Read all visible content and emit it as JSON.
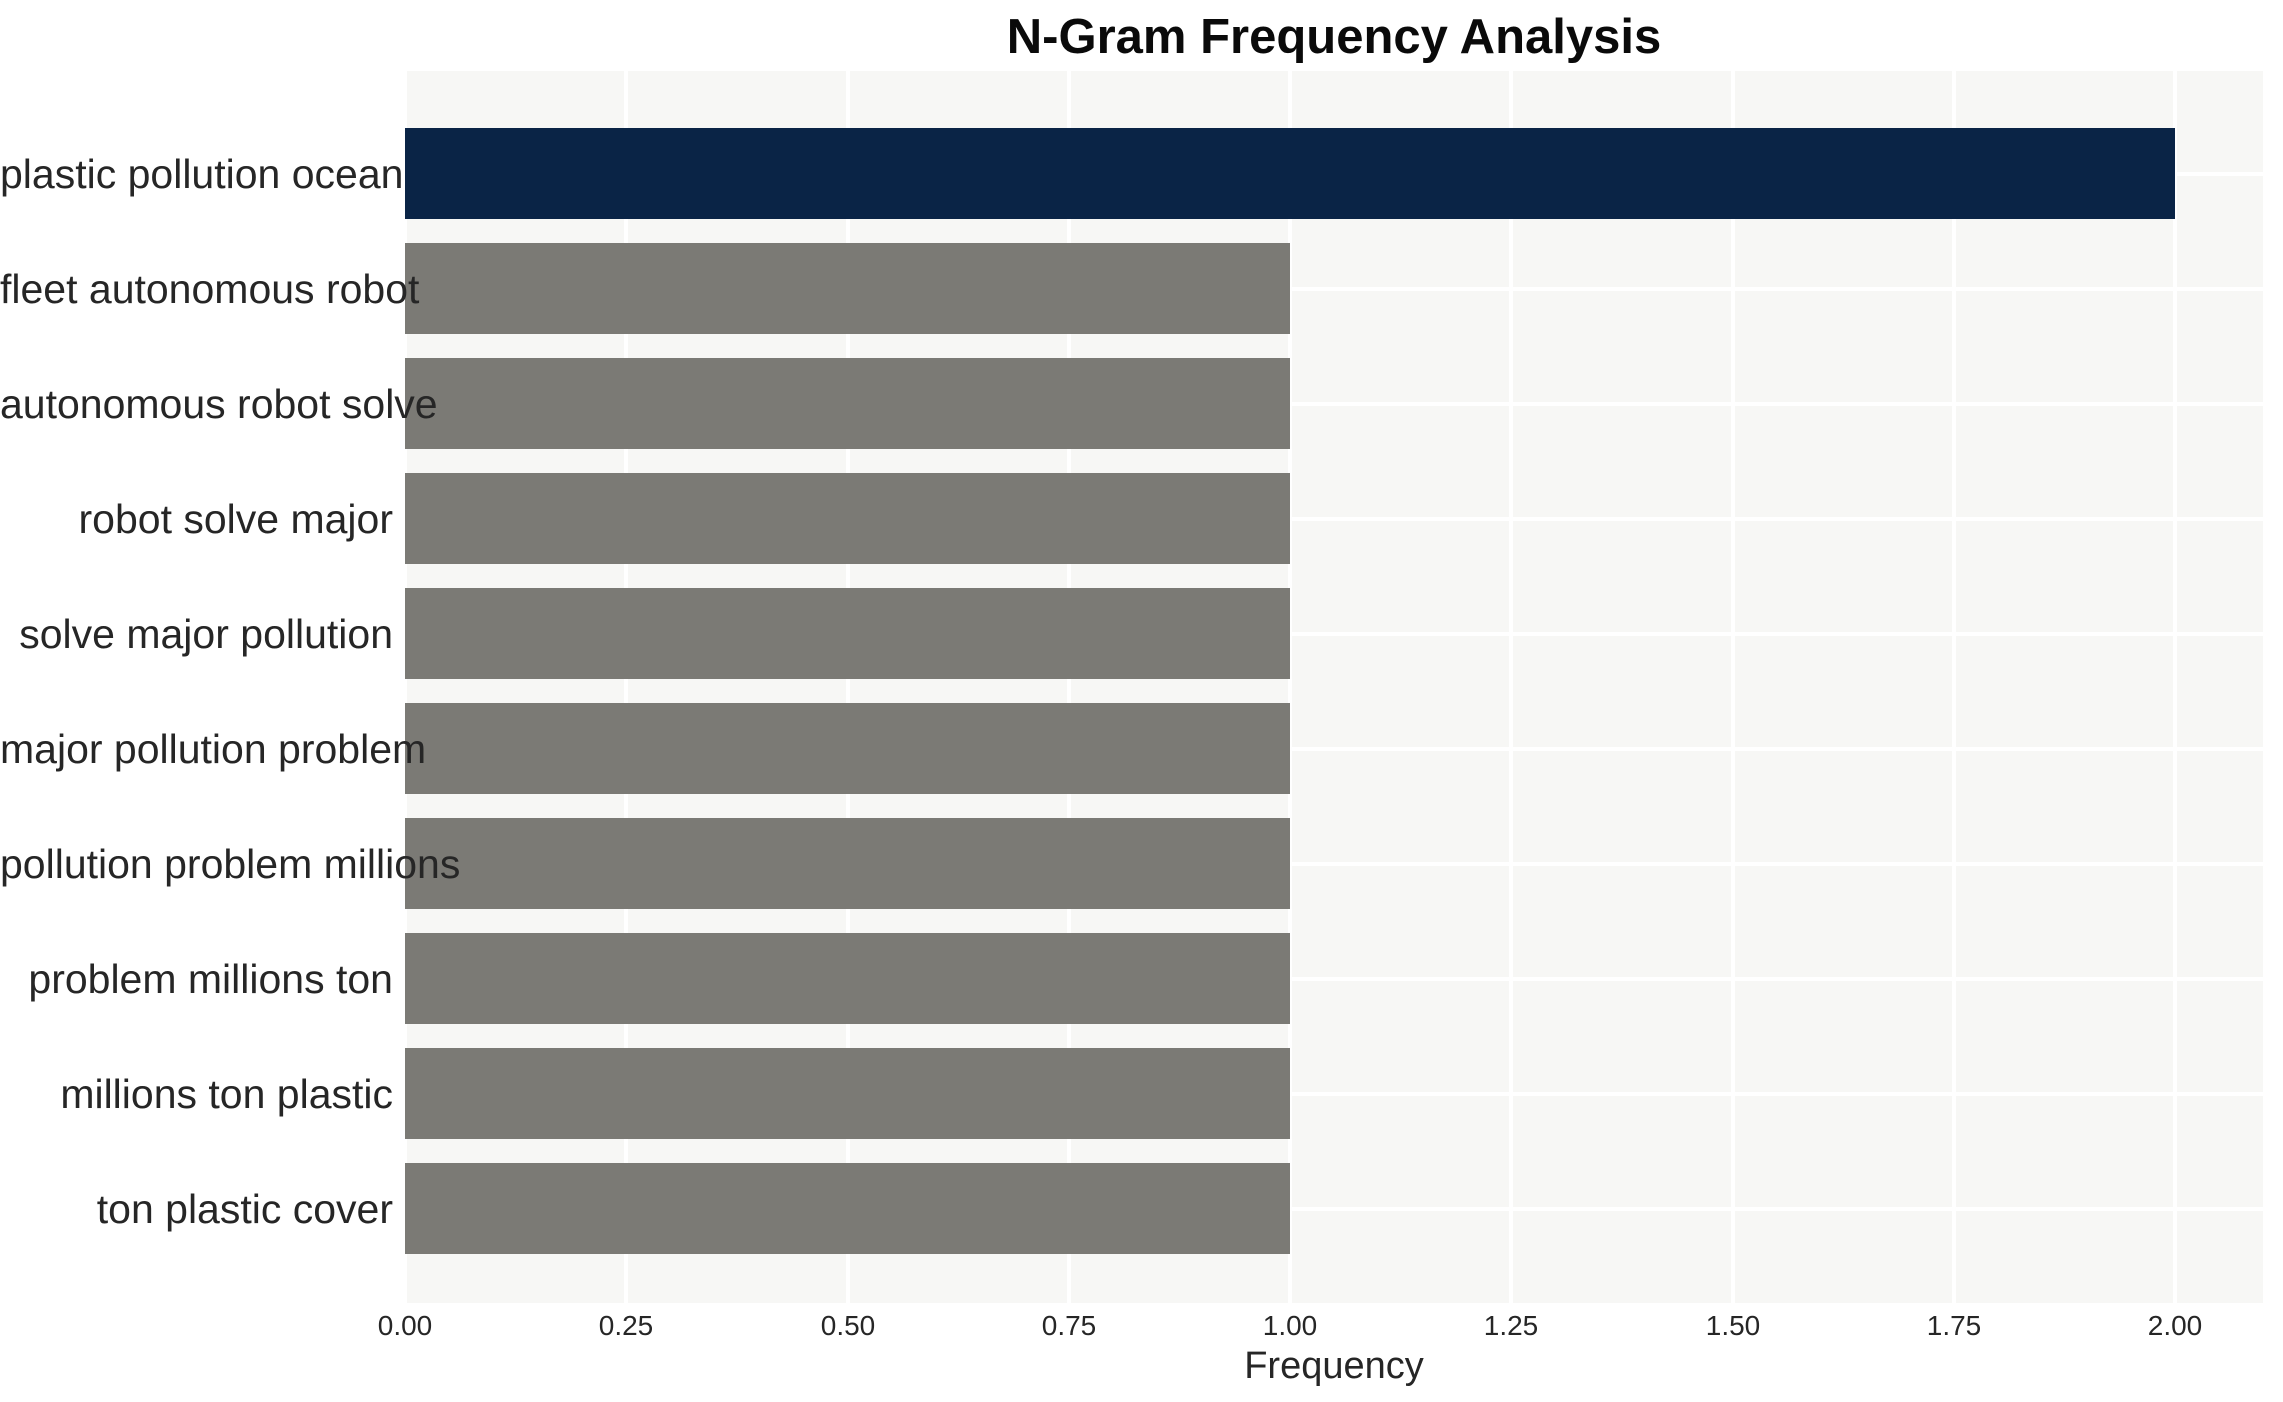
{
  "figure": {
    "background": "#ffffff"
  },
  "chart_data": {
    "type": "bar",
    "orientation": "horizontal",
    "title": "N-Gram Frequency Analysis",
    "xlabel": "Frequency",
    "ylabel": "",
    "categories": [
      "plastic pollution ocean",
      "fleet autonomous robot",
      "autonomous robot solve",
      "robot solve major",
      "solve major pollution",
      "major pollution problem",
      "pollution problem millions",
      "problem millions ton",
      "millions ton plastic",
      "ton plastic cover"
    ],
    "values": [
      2,
      1,
      1,
      1,
      1,
      1,
      1,
      1,
      1,
      1
    ],
    "bar_colors": [
      "#0a2446",
      "#7b7a75",
      "#7b7a75",
      "#7b7a75",
      "#7b7a75",
      "#7b7a75",
      "#7b7a75",
      "#7b7a75",
      "#7b7a75",
      "#7b7a75"
    ],
    "xlim": [
      0,
      2.1
    ],
    "xticks": [
      0,
      0.25,
      0.5,
      0.75,
      1,
      1.25,
      1.5,
      1.75,
      2
    ],
    "xtick_labels": [
      "0.00",
      "0.25",
      "0.50",
      "0.75",
      "1.00",
      "1.25",
      "1.50",
      "1.75",
      "2.00"
    ],
    "grid": true,
    "grid_color": "#ffffff",
    "plot_background": "#f7f7f5",
    "legend": false,
    "text_color": "#262626",
    "title_color": "#0a0a0a",
    "highlight_color": "#0a2446",
    "default_bar_color": "#7b7a75"
  }
}
